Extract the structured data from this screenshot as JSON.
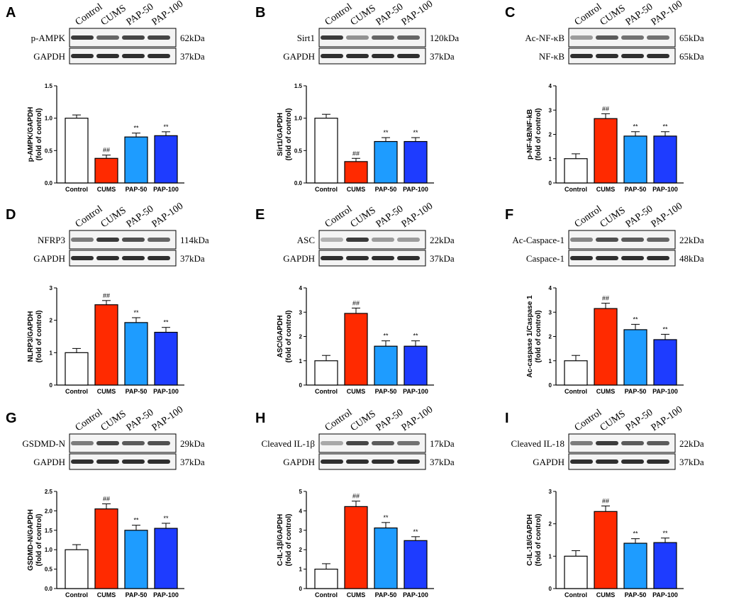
{
  "figure": {
    "lanes": [
      "Control",
      "CUMS",
      "PAP-50",
      "PAP-100"
    ],
    "categories": [
      "Control",
      "CUMS",
      "PAP-50",
      "PAP-100"
    ],
    "bar_colors": [
      "#ffffff",
      "#ff2a00",
      "#1e9cff",
      "#1e3cff"
    ],
    "bar_stroke": "#000000",
    "band_color": "#1a1a1a"
  },
  "chart_data": [
    {
      "type": "bar",
      "label": "A",
      "title": "",
      "blot": {
        "top_protein": "p-AMPK",
        "top_kda": "62kDa",
        "bottom_protein": "GAPDH",
        "bottom_kda": "37kDa",
        "top_intensity": [
          0.85,
          0.65,
          0.8,
          0.8
        ]
      },
      "categories": [
        "Control",
        "CUMS",
        "PAP-50",
        "PAP-100"
      ],
      "values": [
        1.0,
        0.38,
        0.71,
        0.73
      ],
      "errors": [
        0.05,
        0.05,
        0.06,
        0.06
      ],
      "sig": [
        "",
        "##",
        "**",
        "**"
      ],
      "ylabel": "p-AMPK/GAPDH",
      "ylabel2": "(fold of control)",
      "ylim": [
        0,
        1.5
      ],
      "yticks": [
        0,
        0.5,
        1.0,
        1.5
      ],
      "tick_labels": [
        "0.0",
        "0.5",
        "1.0",
        "1.5"
      ]
    },
    {
      "type": "bar",
      "label": "B",
      "title": "",
      "blot": {
        "top_protein": "Sirt1",
        "top_kda": "120kDa",
        "bottom_protein": "GAPDH",
        "bottom_kda": "37kDa",
        "top_intensity": [
          0.85,
          0.45,
          0.65,
          0.65
        ]
      },
      "categories": [
        "Control",
        "CUMS",
        "PAP-50",
        "PAP-100"
      ],
      "values": [
        1.0,
        0.33,
        0.64,
        0.64
      ],
      "errors": [
        0.06,
        0.05,
        0.06,
        0.06
      ],
      "sig": [
        "",
        "##",
        "**",
        "**"
      ],
      "ylabel": "Sirt1/GAPDH",
      "ylabel2": "(fold of control)",
      "ylim": [
        0,
        1.5
      ],
      "yticks": [
        0,
        0.5,
        1.0,
        1.5
      ],
      "tick_labels": [
        "0.0",
        "0.5",
        "1.0",
        "1.5"
      ]
    },
    {
      "type": "bar",
      "label": "C",
      "title": "",
      "blot": {
        "top_protein": "Ac-NF-κB",
        "top_kda": "65kDa",
        "bottom_protein": "NF-κB",
        "bottom_kda": "65kDa",
        "top_intensity": [
          0.4,
          0.7,
          0.6,
          0.6
        ]
      },
      "categories": [
        "Control",
        "CUMS",
        "PAP-50",
        "PAP-100"
      ],
      "values": [
        1.0,
        2.65,
        1.93,
        1.93
      ],
      "errors": [
        0.2,
        0.2,
        0.18,
        0.18
      ],
      "sig": [
        "",
        "##",
        "**",
        "**"
      ],
      "ylabel": "p-NF-kB/NF-kB",
      "ylabel2": "(fold of control)",
      "ylim": [
        0,
        4
      ],
      "yticks": [
        0,
        1,
        2,
        3,
        4
      ],
      "tick_labels": [
        "0",
        "1",
        "2",
        "3",
        "4"
      ]
    },
    {
      "type": "bar",
      "label": "D",
      "title": "",
      "blot": {
        "top_protein": "NFRP3",
        "top_kda": "114kDa",
        "bottom_protein": "GAPDH",
        "bottom_kda": "37kDa",
        "top_intensity": [
          0.55,
          0.85,
          0.75,
          0.65
        ]
      },
      "categories": [
        "Control",
        "CUMS",
        "PAP-50",
        "PAP-100"
      ],
      "values": [
        1.0,
        2.48,
        1.93,
        1.63
      ],
      "errors": [
        0.13,
        0.13,
        0.15,
        0.15
      ],
      "sig": [
        "",
        "##",
        "**",
        "**"
      ],
      "ylabel": "NLRP3/GAPDH",
      "ylabel2": "(fold of control)",
      "ylim": [
        0,
        3
      ],
      "yticks": [
        0,
        1,
        2,
        3
      ],
      "tick_labels": [
        "0",
        "1",
        "2",
        "3"
      ]
    },
    {
      "type": "bar",
      "label": "E",
      "title": "",
      "blot": {
        "top_protein": "ASC",
        "top_kda": "22kDa",
        "bottom_protein": "GAPDH",
        "bottom_kda": "37kDa",
        "top_intensity": [
          0.3,
          0.85,
          0.4,
          0.4
        ]
      },
      "categories": [
        "Control",
        "CUMS",
        "PAP-50",
        "PAP-100"
      ],
      "values": [
        1.0,
        2.95,
        1.6,
        1.6
      ],
      "errors": [
        0.22,
        0.22,
        0.22,
        0.22
      ],
      "sig": [
        "",
        "##",
        "**",
        "**"
      ],
      "ylabel": "ASC/GAPDH",
      "ylabel2": "(fold of control)",
      "ylim": [
        0,
        4
      ],
      "yticks": [
        0,
        1,
        2,
        3,
        4
      ],
      "tick_labels": [
        "0",
        "1",
        "2",
        "3",
        "4"
      ]
    },
    {
      "type": "bar",
      "label": "F",
      "title": "",
      "blot": {
        "top_protein": "Ac-Caspace-1",
        "top_kda": "22kDa",
        "bottom_protein": "Caspace-1",
        "bottom_kda": "48kDa",
        "top_intensity": [
          0.5,
          0.75,
          0.7,
          0.65
        ]
      },
      "categories": [
        "Control",
        "CUMS",
        "PAP-50",
        "PAP-100"
      ],
      "values": [
        1.0,
        3.15,
        2.28,
        1.87
      ],
      "errors": [
        0.22,
        0.22,
        0.22,
        0.22
      ],
      "sig": [
        "",
        "##",
        "**",
        "**"
      ],
      "ylabel": "Ac-caspase 1/Caspase 1",
      "ylabel2": "(fold of control)",
      "ylim": [
        0,
        4
      ],
      "yticks": [
        0,
        1,
        2,
        3,
        4
      ],
      "tick_labels": [
        "0",
        "1",
        "2",
        "3",
        "4"
      ]
    },
    {
      "type": "bar",
      "label": "G",
      "title": "",
      "blot": {
        "top_protein": "GSDMD-N",
        "top_kda": "29kDa",
        "bottom_protein": "GAPDH",
        "bottom_kda": "37kDa",
        "top_intensity": [
          0.55,
          0.8,
          0.7,
          0.75
        ]
      },
      "categories": [
        "Control",
        "CUMS",
        "PAP-50",
        "PAP-100"
      ],
      "values": [
        1.0,
        2.05,
        1.5,
        1.55
      ],
      "errors": [
        0.13,
        0.13,
        0.13,
        0.13
      ],
      "sig": [
        "",
        "##",
        "**",
        "**"
      ],
      "ylabel": "GSDMD-N/GAPDH",
      "ylabel2": "(fold of control)",
      "ylim": [
        0,
        2.5
      ],
      "yticks": [
        0,
        0.5,
        1.0,
        1.5,
        2.0,
        2.5
      ],
      "tick_labels": [
        "0.0",
        "0.5",
        "1.0",
        "1.5",
        "2.0",
        "2.5"
      ]
    },
    {
      "type": "bar",
      "label": "H",
      "title": "",
      "blot": {
        "top_protein": "Cleaved IL-1β",
        "top_kda": "17kDa",
        "bottom_protein": "GAPDH",
        "bottom_kda": "37kDa",
        "top_intensity": [
          0.35,
          0.8,
          0.7,
          0.6
        ]
      },
      "categories": [
        "Control",
        "CUMS",
        "PAP-50",
        "PAP-100"
      ],
      "values": [
        1.0,
        4.22,
        3.12,
        2.47
      ],
      "errors": [
        0.28,
        0.28,
        0.28,
        0.2
      ],
      "sig": [
        "",
        "##",
        "**",
        "**"
      ],
      "ylabel": "C-IL-1β/GAPDH",
      "ylabel2": "(fold of control)",
      "ylim": [
        0,
        5
      ],
      "yticks": [
        0,
        1,
        2,
        3,
        4,
        5
      ],
      "tick_labels": [
        "0",
        "1",
        "2",
        "3",
        "4",
        "5"
      ]
    },
    {
      "type": "bar",
      "label": "I",
      "title": "",
      "blot": {
        "top_protein": "Cleaved IL-18",
        "top_kda": "22kDa",
        "bottom_protein": "GAPDH",
        "bottom_kda": "37kDa",
        "top_intensity": [
          0.55,
          0.85,
          0.7,
          0.7
        ]
      },
      "categories": [
        "Control",
        "CUMS",
        "PAP-50",
        "PAP-100"
      ],
      "values": [
        1.0,
        2.38,
        1.4,
        1.42
      ],
      "errors": [
        0.17,
        0.17,
        0.14,
        0.14
      ],
      "sig": [
        "",
        "##",
        "**",
        "**"
      ],
      "ylabel": "C-IL-18/GAPDH",
      "ylabel2": "(fold of control)",
      "ylim": [
        0,
        3
      ],
      "yticks": [
        0,
        1,
        2,
        3
      ],
      "tick_labels": [
        "0",
        "1",
        "2",
        "3"
      ]
    }
  ]
}
